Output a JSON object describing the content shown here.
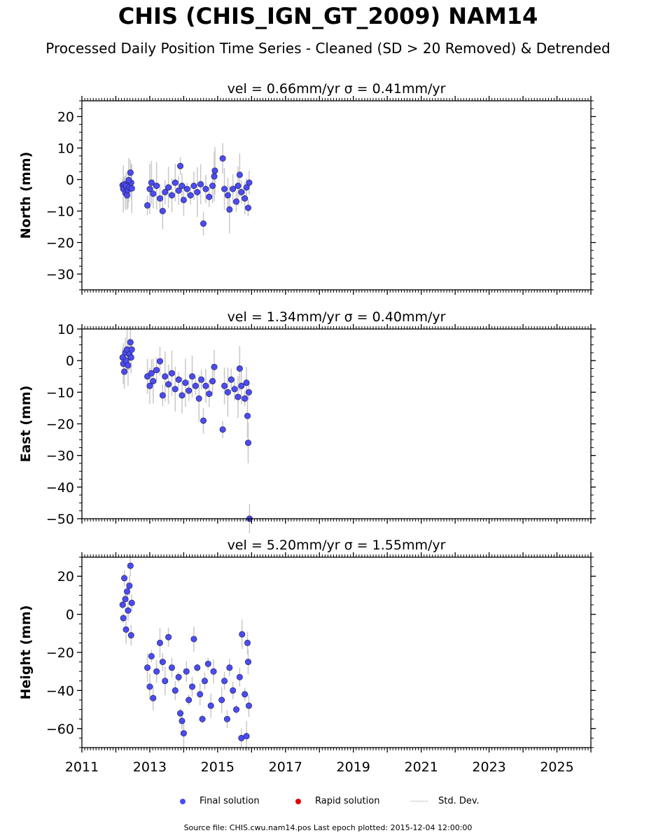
{
  "title": "CHIS (CHIS_IGN_GT_2009) NAM14",
  "subtitle": "Processed Daily Position Time Series - Cleaned (SD > 20 Removed) & Detrended",
  "legend": {
    "final": "Final solution",
    "rapid": "Rapid solution",
    "std": "Std. Dev."
  },
  "footer": "Source file: CHIS.cwu.nam14.pos  Last epoch plotted: 2015-12-04 12:00:00",
  "colors": {
    "final": "#4b4bf5",
    "rapid": "#e00000",
    "std": "#c8c8c8",
    "marker_edge": "#1a1a3a"
  },
  "chart_data": [
    {
      "type": "scatter",
      "panel": "north",
      "title": "vel = 0.66mm/yr   σ = 0.41mm/yr",
      "ylabel": "North (mm)",
      "ylim": [
        -35,
        25
      ],
      "yticks": [
        20,
        10,
        0,
        -10,
        -20,
        -30
      ],
      "ytick_labels": [
        "20",
        "10",
        "0",
        "−10",
        "−20",
        "−30"
      ],
      "xlim": [
        2011.0,
        2026.0
      ],
      "xticks": [
        2011,
        2013,
        2015,
        2017,
        2019,
        2021,
        2023,
        2025
      ],
      "points": [
        [
          2012.2,
          -1.8
        ],
        [
          2012.22,
          -3.0
        ],
        [
          2012.25,
          -1.5
        ],
        [
          2012.28,
          -4.2
        ],
        [
          2012.3,
          -2.0
        ],
        [
          2012.33,
          -5.0
        ],
        [
          2012.36,
          -3.3
        ],
        [
          2012.4,
          -2.5
        ],
        [
          2012.43,
          2.2
        ],
        [
          2012.45,
          -1.0
        ],
        [
          2012.47,
          -2.8
        ],
        [
          2012.38,
          -0.2
        ],
        [
          2012.93,
          -8.2
        ],
        [
          2013.0,
          -3.0
        ],
        [
          2013.05,
          -1.0
        ],
        [
          2013.1,
          -4.5
        ],
        [
          2013.2,
          -2.0
        ],
        [
          2013.3,
          -6.0
        ],
        [
          2013.38,
          -10.0
        ],
        [
          2013.45,
          -4.0
        ],
        [
          2013.55,
          -2.5
        ],
        [
          2013.65,
          -5.0
        ],
        [
          2013.75,
          -1.0
        ],
        [
          2013.85,
          -3.5
        ],
        [
          2013.9,
          4.3
        ],
        [
          2013.95,
          -2.0
        ],
        [
          2014.0,
          -6.5
        ],
        [
          2014.1,
          -3.0
        ],
        [
          2014.2,
          -5.0
        ],
        [
          2014.3,
          -2.0
        ],
        [
          2014.4,
          -4.0
        ],
        [
          2014.5,
          -1.5
        ],
        [
          2014.58,
          -14.0
        ],
        [
          2014.65,
          -3.0
        ],
        [
          2014.75,
          -5.5
        ],
        [
          2014.85,
          -2.0
        ],
        [
          2014.9,
          1.0
        ],
        [
          2014.92,
          2.8
        ],
        [
          2015.15,
          6.7
        ],
        [
          2015.2,
          -3.0
        ],
        [
          2015.3,
          -5.0
        ],
        [
          2015.35,
          -9.5
        ],
        [
          2015.45,
          -3.0
        ],
        [
          2015.55,
          -7.0
        ],
        [
          2015.6,
          -2.0
        ],
        [
          2015.65,
          1.5
        ],
        [
          2015.7,
          -4.0
        ],
        [
          2015.8,
          -6.0
        ],
        [
          2015.85,
          -2.5
        ],
        [
          2015.9,
          -9.0
        ],
        [
          2015.93,
          -1.0
        ]
      ]
    },
    {
      "type": "scatter",
      "panel": "east",
      "title": "vel = 1.34mm/yr   σ = 0.40mm/yr",
      "ylabel": "East (mm)",
      "ylim": [
        -50,
        10
      ],
      "yticks": [
        10,
        0,
        -10,
        -20,
        -30,
        -40,
        -50
      ],
      "ytick_labels": [
        "10",
        "0",
        "−10",
        "−20",
        "−30",
        "−40",
        "−50"
      ],
      "xlim": [
        2011.0,
        2026.0
      ],
      "xticks": [
        2011,
        2013,
        2015,
        2017,
        2019,
        2021,
        2023,
        2025
      ],
      "points": [
        [
          2012.2,
          1.0
        ],
        [
          2012.22,
          -1.0
        ],
        [
          2012.25,
          -3.5
        ],
        [
          2012.28,
          2.5
        ],
        [
          2012.3,
          0.0
        ],
        [
          2012.33,
          3.5
        ],
        [
          2012.36,
          -1.5
        ],
        [
          2012.4,
          2.0
        ],
        [
          2012.43,
          5.8
        ],
        [
          2012.45,
          1.0
        ],
        [
          2012.47,
          3.5
        ],
        [
          2012.93,
          -5.0
        ],
        [
          2013.0,
          -8.0
        ],
        [
          2013.05,
          -4.0
        ],
        [
          2013.1,
          -6.5
        ],
        [
          2013.2,
          -3.0
        ],
        [
          2013.3,
          -0.2
        ],
        [
          2013.38,
          -11.0
        ],
        [
          2013.45,
          -5.0
        ],
        [
          2013.55,
          -7.5
        ],
        [
          2013.65,
          -4.0
        ],
        [
          2013.75,
          -9.0
        ],
        [
          2013.85,
          -6.0
        ],
        [
          2013.95,
          -11.0
        ],
        [
          2014.05,
          -7.0
        ],
        [
          2014.15,
          -9.5
        ],
        [
          2014.25,
          -5.0
        ],
        [
          2014.35,
          -8.0
        ],
        [
          2014.45,
          -12.0
        ],
        [
          2014.52,
          -6.0
        ],
        [
          2014.58,
          -19.0
        ],
        [
          2014.65,
          -8.0
        ],
        [
          2014.75,
          -10.5
        ],
        [
          2014.85,
          -6.5
        ],
        [
          2014.9,
          -2.0
        ],
        [
          2015.15,
          -21.8
        ],
        [
          2015.2,
          -8.0
        ],
        [
          2015.3,
          -10.0
        ],
        [
          2015.4,
          -6.0
        ],
        [
          2015.5,
          -9.0
        ],
        [
          2015.6,
          -11.5
        ],
        [
          2015.65,
          -2.5
        ],
        [
          2015.7,
          -8.0
        ],
        [
          2015.8,
          -12.0
        ],
        [
          2015.85,
          -7.0
        ],
        [
          2015.88,
          -17.5
        ],
        [
          2015.9,
          -26.0
        ],
        [
          2015.92,
          -10.0
        ],
        [
          2015.94,
          -50.0
        ]
      ]
    },
    {
      "type": "scatter",
      "panel": "height",
      "title": "vel = 5.20mm/yr   σ = 1.55mm/yr",
      "ylabel": "Height (mm)",
      "ylim": [
        -70,
        30
      ],
      "yticks": [
        20,
        0,
        -20,
        -40,
        -60
      ],
      "ytick_labels": [
        "20",
        "0",
        "−20",
        "−40",
        "−60"
      ],
      "xlim": [
        2011.0,
        2026.0
      ],
      "xticks": [
        2011,
        2013,
        2015,
        2017,
        2019,
        2021,
        2023,
        2025
      ],
      "xtick_labels": [
        "2011",
        "2013",
        "2015",
        "2017",
        "2019",
        "2021",
        "2023",
        "2025"
      ],
      "points": [
        [
          2012.2,
          5.0
        ],
        [
          2012.22,
          -2.0
        ],
        [
          2012.25,
          19.0
        ],
        [
          2012.28,
          8.0
        ],
        [
          2012.3,
          -8.0
        ],
        [
          2012.33,
          12.0
        ],
        [
          2012.36,
          2.0
        ],
        [
          2012.4,
          15.0
        ],
        [
          2012.43,
          25.5
        ],
        [
          2012.45,
          -11.0
        ],
        [
          2012.47,
          6.0
        ],
        [
          2012.93,
          -28.0
        ],
        [
          2013.0,
          -38.0
        ],
        [
          2013.05,
          -22.0
        ],
        [
          2013.1,
          -44.0
        ],
        [
          2013.2,
          -30.0
        ],
        [
          2013.3,
          -15.0
        ],
        [
          2013.38,
          -25.0
        ],
        [
          2013.45,
          -35.0
        ],
        [
          2013.55,
          -12.0
        ],
        [
          2013.65,
          -28.0
        ],
        [
          2013.75,
          -40.0
        ],
        [
          2013.85,
          -33.0
        ],
        [
          2013.9,
          -52.0
        ],
        [
          2013.95,
          -56.0
        ],
        [
          2014.0,
          -62.5
        ],
        [
          2014.08,
          -30.0
        ],
        [
          2014.15,
          -45.0
        ],
        [
          2014.25,
          -38.0
        ],
        [
          2014.3,
          -13.0
        ],
        [
          2014.4,
          -28.0
        ],
        [
          2014.48,
          -42.0
        ],
        [
          2014.55,
          -55.0
        ],
        [
          2014.62,
          -35.0
        ],
        [
          2014.72,
          -26.0
        ],
        [
          2014.8,
          -48.0
        ],
        [
          2014.88,
          -30.0
        ],
        [
          2015.12,
          -45.0
        ],
        [
          2015.2,
          -35.0
        ],
        [
          2015.28,
          -55.0
        ],
        [
          2015.35,
          -28.0
        ],
        [
          2015.45,
          -40.0
        ],
        [
          2015.55,
          -50.0
        ],
        [
          2015.65,
          -33.0
        ],
        [
          2015.7,
          -65.0
        ],
        [
          2015.72,
          -10.5
        ],
        [
          2015.8,
          -42.0
        ],
        [
          2015.85,
          -64.0
        ],
        [
          2015.88,
          -15.0
        ],
        [
          2015.9,
          -25.0
        ],
        [
          2015.92,
          -48.0
        ]
      ]
    }
  ]
}
